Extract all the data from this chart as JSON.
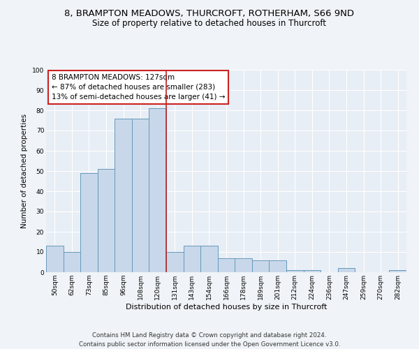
{
  "title1": "8, BRAMPTON MEADOWS, THURCROFT, ROTHERHAM, S66 9ND",
  "title2": "Size of property relative to detached houses in Thurcroft",
  "xlabel": "Distribution of detached houses by size in Thurcroft",
  "ylabel": "Number of detached properties",
  "categories": [
    "50sqm",
    "62sqm",
    "73sqm",
    "85sqm",
    "96sqm",
    "108sqm",
    "120sqm",
    "131sqm",
    "143sqm",
    "154sqm",
    "166sqm",
    "178sqm",
    "189sqm",
    "201sqm",
    "212sqm",
    "224sqm",
    "236sqm",
    "247sqm",
    "259sqm",
    "270sqm",
    "282sqm"
  ],
  "values": [
    13,
    10,
    49,
    51,
    76,
    76,
    81,
    10,
    13,
    13,
    7,
    7,
    6,
    6,
    1,
    1,
    0,
    2,
    0,
    0,
    1
  ],
  "bar_color": "#c8d8ea",
  "bar_edge_color": "#6699bb",
  "vline_x_idx": 7,
  "vline_color": "#bb2222",
  "annotation_lines": [
    "8 BRAMPTON MEADOWS: 127sqm",
    "← 87% of detached houses are smaller (283)",
    "13% of semi-detached houses are larger (41) →"
  ],
  "annotation_box_color": "#cc2222",
  "ylim": [
    0,
    100
  ],
  "yticks": [
    0,
    10,
    20,
    30,
    40,
    50,
    60,
    70,
    80,
    90,
    100
  ],
  "background_color": "#f0f4f8",
  "plot_bg_color": "#e8eef5",
  "grid_color": "#ffffff",
  "footer1": "Contains HM Land Registry data © Crown copyright and database right 2024.",
  "footer2": "Contains public sector information licensed under the Open Government Licence v3.0.",
  "title1_fontsize": 9.5,
  "title2_fontsize": 8.5,
  "xlabel_fontsize": 8,
  "ylabel_fontsize": 7.5,
  "tick_fontsize": 6.5,
  "annotation_fontsize": 7.5,
  "footer_fontsize": 6.2
}
